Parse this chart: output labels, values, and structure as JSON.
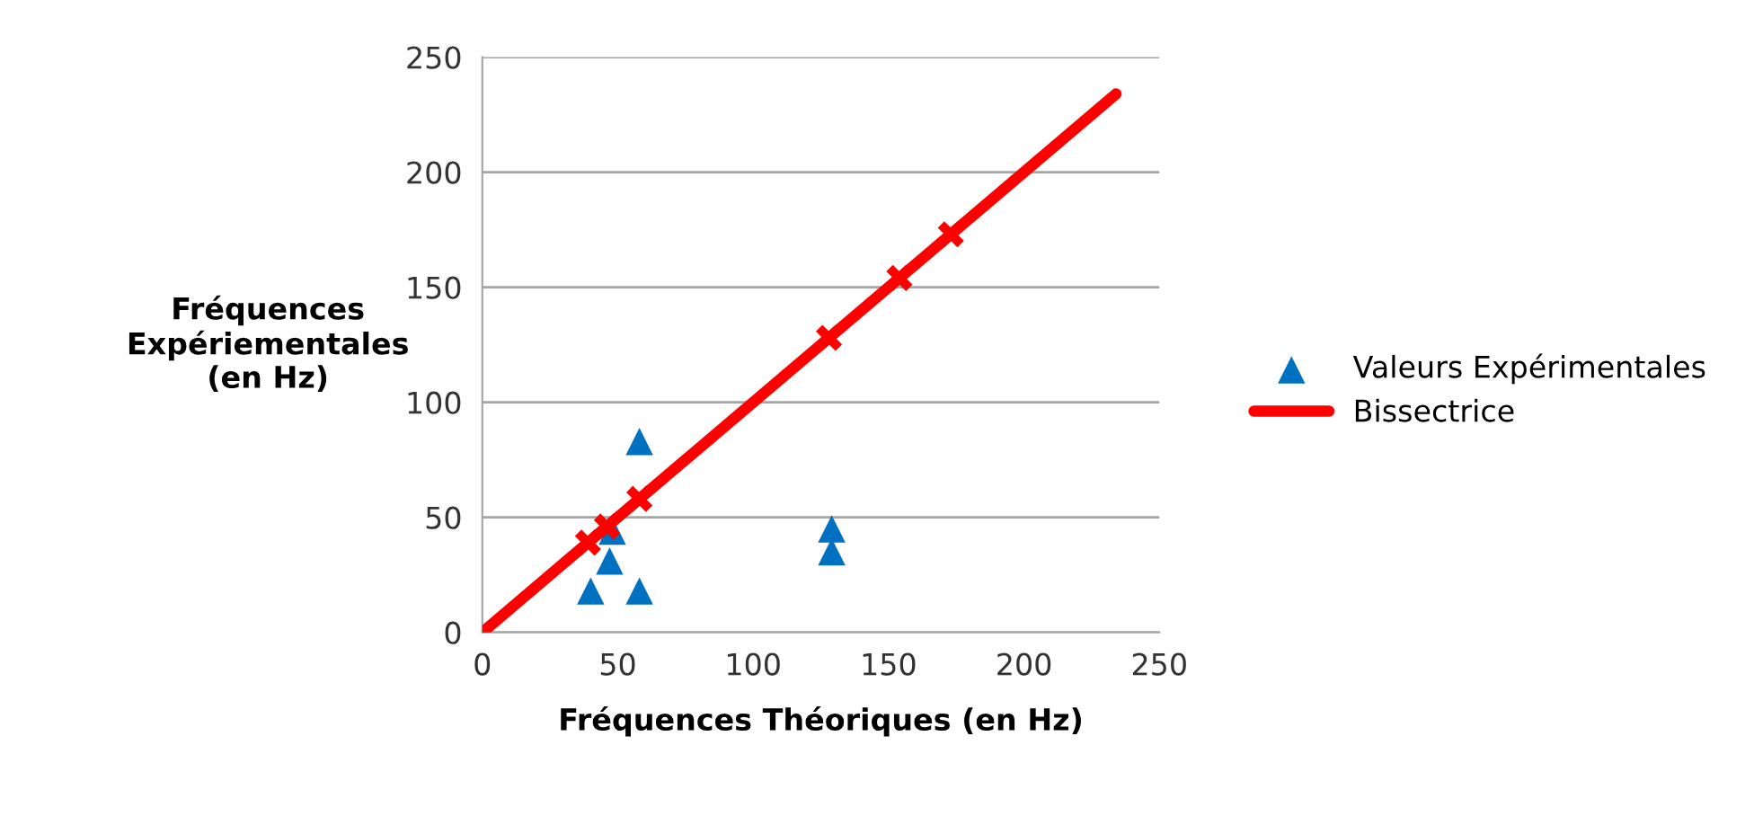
{
  "chart_data": {
    "type": "scatter",
    "xlabel": "Fréquences Théoriques (en Hz)",
    "ylabel": "Fréquences\nExpériementales\n(en Hz)",
    "xlim": [
      0,
      250
    ],
    "ylim": [
      0,
      250
    ],
    "xticks": [
      0,
      50,
      100,
      150,
      200,
      250
    ],
    "yticks": [
      0,
      50,
      100,
      150,
      200,
      250
    ],
    "grid": "y",
    "legend": "right",
    "series": [
      {
        "name": "Valeurs Expérimentales",
        "marker": "triangle",
        "color": "#0070c0",
        "x": [
          58,
          48,
          47,
          40,
          58,
          129,
          129
        ],
        "values": [
          83,
          44,
          31,
          18,
          18,
          45,
          35
        ]
      },
      {
        "name": "Bissectrice",
        "type": "line",
        "marker": "none",
        "color": "#ff0000",
        "x": [
          0,
          234
        ],
        "values": [
          0,
          234
        ]
      },
      {
        "marker": "cross",
        "color": "#ff0000",
        "x": [
          39,
          46,
          58,
          128,
          154,
          173
        ],
        "values": [
          39,
          46,
          58,
          128,
          154,
          173
        ]
      }
    ]
  }
}
